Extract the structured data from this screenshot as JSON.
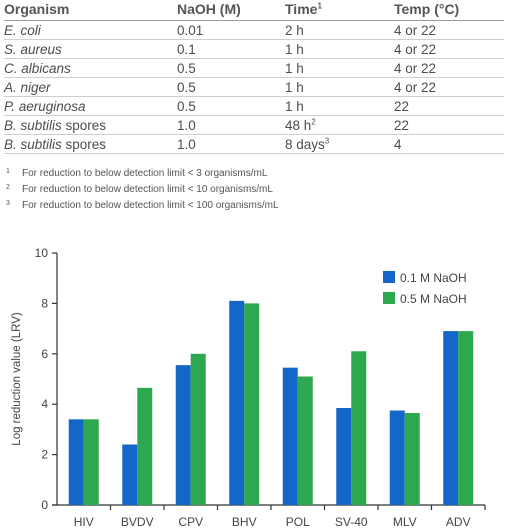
{
  "table": {
    "headers": {
      "organism": "Organism",
      "naoh": "NaOH (M)",
      "time": "Time",
      "time_sup": "1",
      "temp": "Temp (°C)"
    },
    "rows": [
      {
        "organism": "E. coli",
        "naoh": "0.01",
        "time": "2 h",
        "time_sup": "",
        "temp": "4 or 22"
      },
      {
        "organism": "S. aureus",
        "naoh": "0.1",
        "time": "1 h",
        "time_sup": "",
        "temp": "4 or 22"
      },
      {
        "organism": "C. albicans",
        "naoh": "0.5",
        "time": "1 h",
        "time_sup": "",
        "temp": "4 or 22"
      },
      {
        "organism": "A. niger",
        "naoh": "0.5",
        "time": "1 h",
        "time_sup": "",
        "temp": "4 or 22"
      },
      {
        "organism": "P. aeruginosa",
        "naoh": "0.5",
        "time": "1 h",
        "time_sup": "",
        "temp": "22"
      },
      {
        "organism": "B. subtilis",
        "organism_suffix": " spores",
        "naoh": "1.0",
        "time": "48 h",
        "time_sup": "2",
        "temp": "22"
      },
      {
        "organism": "B. subtilis",
        "organism_suffix": " spores",
        "naoh": "1.0",
        "time": "8 days",
        "time_sup": "3",
        "temp": "4"
      }
    ]
  },
  "footnotes": [
    {
      "num": "1",
      "text": "For reduction to below detection limit < 3 organisms/mL"
    },
    {
      "num": "2",
      "text": "For reduction to below detection limit < 10 organisms/mL"
    },
    {
      "num": "3",
      "text": "For reduction to below detection limit < 100 organisms/mL"
    }
  ],
  "colors": {
    "series1": "#1466c8",
    "series2": "#2ea84e",
    "axis": "#333333"
  },
  "chart_data": {
    "type": "bar",
    "title": "",
    "xlabel": "",
    "ylabel": "Log reduction value (LRV)",
    "ylim": [
      0,
      10
    ],
    "yticks": [
      "0",
      "2",
      "4",
      "6",
      "8",
      "10"
    ],
    "categories": [
      "HIV",
      "BVDV",
      "CPV",
      "BHV",
      "POL",
      "SV-40",
      "MLV",
      "ADV"
    ],
    "series": [
      {
        "name": "0.1 M NaOH",
        "values": [
          3.4,
          2.4,
          5.55,
          8.1,
          5.45,
          3.85,
          3.75,
          6.9
        ]
      },
      {
        "name": "0.5 M NaOH",
        "values": [
          3.4,
          4.65,
          6.0,
          8.0,
          5.1,
          6.1,
          3.65,
          6.9
        ]
      }
    ],
    "legend": "top-right",
    "grid": false
  }
}
